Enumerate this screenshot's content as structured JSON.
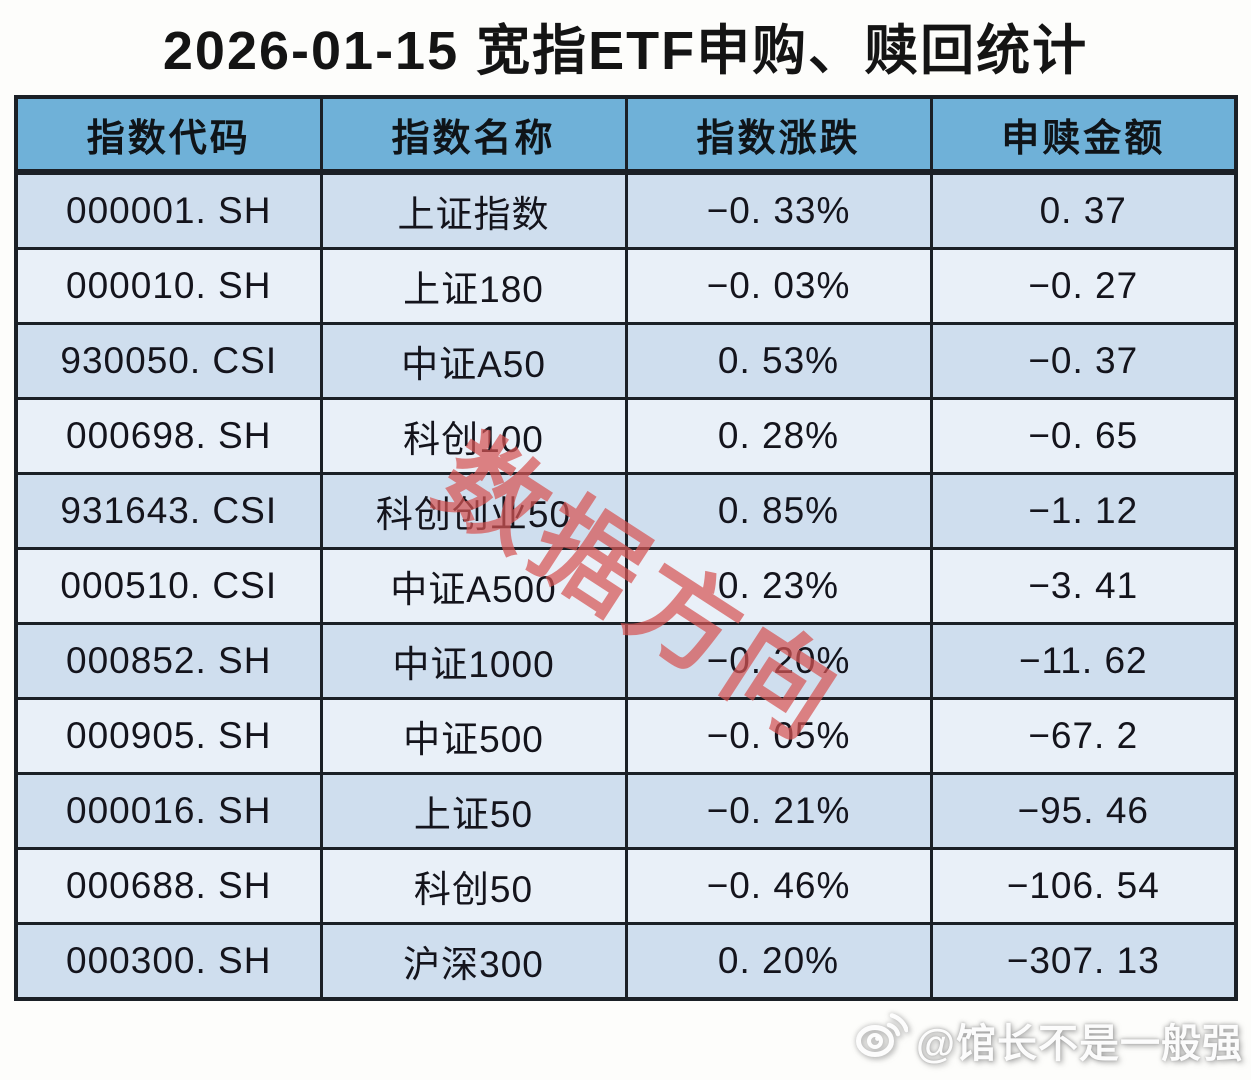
{
  "title": "2026-01-15 宽指ETF申购、赎回统计",
  "table": {
    "headers": [
      "指数代码",
      "指数名称",
      "指数涨跌",
      "申赎金额"
    ],
    "rows": [
      {
        "code": "000001. SH",
        "name": "上证指数",
        "change": "−0. 33%",
        "amount": "0. 37"
      },
      {
        "code": "000010. SH",
        "name": "上证180",
        "change": "−0. 03%",
        "amount": "−0. 27"
      },
      {
        "code": "930050. CSI",
        "name": "中证A50",
        "change": "0. 53%",
        "amount": "−0. 37"
      },
      {
        "code": "000698. SH",
        "name": "科创100",
        "change": "0. 28%",
        "amount": "−0. 65"
      },
      {
        "code": "931643. CSI",
        "name": "科创创业50",
        "change": "0. 85%",
        "amount": "−1. 12"
      },
      {
        "code": "000510. CSI",
        "name": "中证A500",
        "change": "0. 23%",
        "amount": "−3. 41"
      },
      {
        "code": "000852. SH",
        "name": "中证1000",
        "change": "−0. 20%",
        "amount": "−11. 62"
      },
      {
        "code": "000905. SH",
        "name": "中证500",
        "change": "−0. 05%",
        "amount": "−67. 2"
      },
      {
        "code": "000016. SH",
        "name": "上证50",
        "change": "−0. 21%",
        "amount": "−95. 46"
      },
      {
        "code": "000688. SH",
        "name": "科创50",
        "change": "−0. 46%",
        "amount": "−106. 54"
      },
      {
        "code": "000300. SH",
        "name": "沪深300",
        "change": "0. 20%",
        "amount": "−307. 13"
      }
    ]
  },
  "chart_data": {
    "type": "table",
    "title": "2026-01-15 宽指ETF申购、赎回统计",
    "columns": [
      "指数代码",
      "指数名称",
      "指数涨跌",
      "申赎金额"
    ],
    "index_codes": [
      "000001.SH",
      "000010.SH",
      "930050.CSI",
      "000698.SH",
      "931643.CSI",
      "000510.CSI",
      "000852.SH",
      "000905.SH",
      "000016.SH",
      "000688.SH",
      "000300.SH"
    ],
    "index_names": [
      "上证指数",
      "上证180",
      "中证A50",
      "科创100",
      "科创创业50",
      "中证A500",
      "中证1000",
      "中证500",
      "上证50",
      "科创50",
      "沪深300"
    ],
    "index_change_pct": [
      -0.33,
      -0.03,
      0.53,
      0.28,
      0.85,
      0.23,
      -0.2,
      -0.05,
      -0.21,
      -0.46,
      0.2
    ],
    "subscription_amount": [
      0.37,
      -0.27,
      -0.37,
      -0.65,
      -1.12,
      -3.41,
      -11.62,
      -67.2,
      -95.46,
      -106.54,
      -307.13
    ]
  },
  "watermark": {
    "diagonal_text": "数据方向",
    "credit_text": "@馆长不是一般强",
    "credit_icon": "weibo-logo-icon"
  },
  "colors": {
    "page_bg": "#fdfdfb",
    "title_color": "#141414",
    "header_bg": "#6fb1d8",
    "row_dark": "#cfdeee",
    "row_light": "#e9f0f8",
    "border_color": "#1b2026",
    "watermark_red": "rgba(214,84,84,0.72)"
  }
}
